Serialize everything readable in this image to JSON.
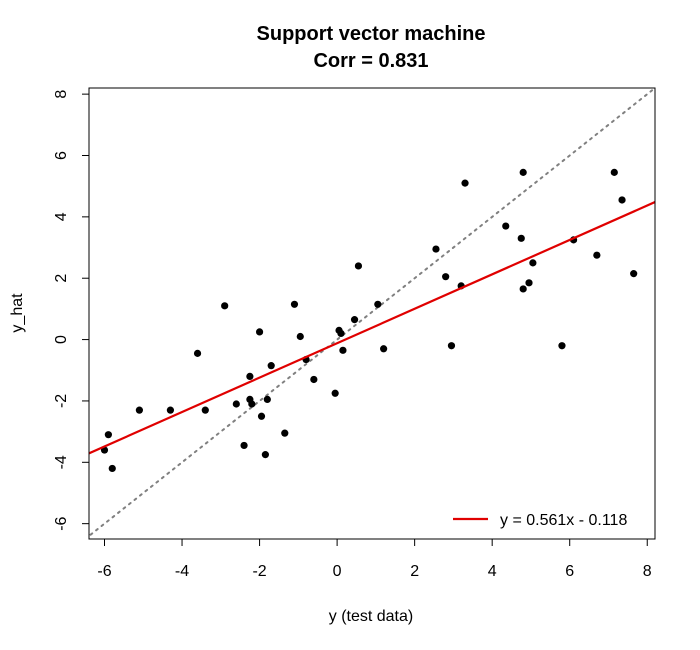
{
  "chart_data": {
    "type": "scatter",
    "title": "Support vector machine",
    "subtitle": "Corr = 0.831",
    "xlabel": "y (test data)",
    "ylabel": "y_hat",
    "xlim": [
      -6.4,
      8.2
    ],
    "ylim": [
      -6.5,
      8.2
    ],
    "xticks": [
      -6,
      -4,
      -2,
      0,
      2,
      4,
      6,
      8
    ],
    "yticks": [
      -6,
      -4,
      -2,
      0,
      2,
      4,
      6,
      8
    ],
    "grid": false,
    "legend_position": "bottom-right",
    "points": [
      [
        -6.0,
        -3.6
      ],
      [
        -5.9,
        -3.1
      ],
      [
        -5.8,
        -4.2
      ],
      [
        -5.1,
        -2.3
      ],
      [
        -4.3,
        -2.3
      ],
      [
        -3.6,
        -0.45
      ],
      [
        -3.4,
        -2.3
      ],
      [
        -2.9,
        1.1
      ],
      [
        -2.6,
        -2.1
      ],
      [
        -2.4,
        -3.45
      ],
      [
        -2.25,
        -1.2
      ],
      [
        -2.25,
        -1.95
      ],
      [
        -2.2,
        -2.1
      ],
      [
        -2.0,
        0.25
      ],
      [
        -1.95,
        -2.5
      ],
      [
        -1.85,
        -3.75
      ],
      [
        -1.8,
        -1.95
      ],
      [
        -1.7,
        -0.85
      ],
      [
        -1.35,
        -3.05
      ],
      [
        -1.1,
        1.15
      ],
      [
        -0.95,
        0.1
      ],
      [
        -0.8,
        -0.65
      ],
      [
        -0.6,
        -1.3
      ],
      [
        -0.05,
        -1.75
      ],
      [
        0.05,
        0.3
      ],
      [
        0.1,
        0.2
      ],
      [
        0.15,
        -0.35
      ],
      [
        0.45,
        0.65
      ],
      [
        0.55,
        2.4
      ],
      [
        1.05,
        1.15
      ],
      [
        1.2,
        -0.3
      ],
      [
        2.55,
        2.95
      ],
      [
        2.8,
        2.05
      ],
      [
        2.95,
        -0.2
      ],
      [
        3.2,
        1.75
      ],
      [
        3.3,
        5.1
      ],
      [
        4.35,
        3.7
      ],
      [
        4.75,
        3.3
      ],
      [
        4.8,
        5.45
      ],
      [
        4.8,
        1.65
      ],
      [
        4.95,
        1.85
      ],
      [
        5.05,
        2.5
      ],
      [
        5.8,
        -0.2
      ],
      [
        6.1,
        3.25
      ],
      [
        6.7,
        2.75
      ],
      [
        7.15,
        5.45
      ],
      [
        7.35,
        4.55
      ],
      [
        7.65,
        2.15
      ]
    ],
    "regression": {
      "slope": 0.561,
      "intercept": -0.118,
      "color": "#e00000",
      "label": "y = 0.561x - 0.118"
    },
    "identity_line": {
      "color": "#808080",
      "style": "dotted"
    },
    "point_color": "#000000"
  }
}
